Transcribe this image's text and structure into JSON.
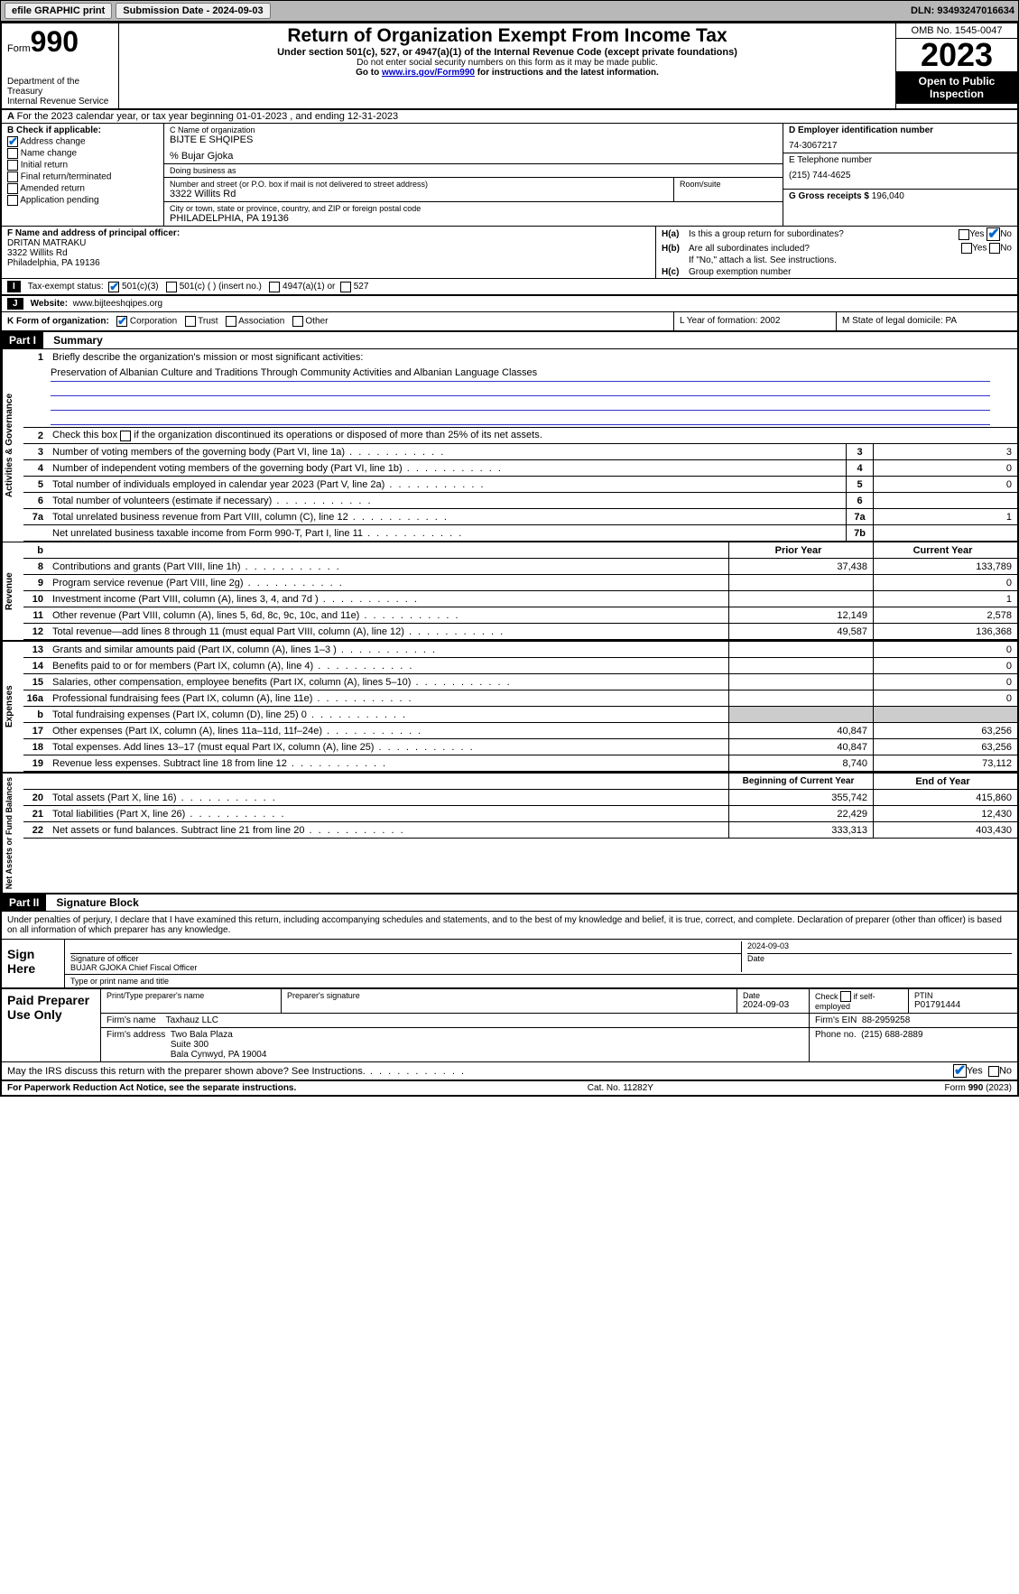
{
  "topbar": {
    "efile_btn": "efile GRAPHIC print",
    "sub_date_label": "Submission Date - 2024-09-03",
    "dln": "DLN: 93493247016634"
  },
  "header": {
    "form_label": "Form",
    "form_num": "990",
    "dept": "Department of the Treasury\nInternal Revenue Service",
    "title": "Return of Organization Exempt From Income Tax",
    "sub1": "Under section 501(c), 527, or 4947(a)(1) of the Internal Revenue Code (except private foundations)",
    "sub2": "Do not enter social security numbers on this form as it may be made public.",
    "sub3_pre": "Go to ",
    "sub3_link": "www.irs.gov/Form990",
    "sub3_post": " for instructions and the latest information.",
    "omb": "OMB No. 1545-0047",
    "year": "2023",
    "open": "Open to Public Inspection"
  },
  "rowA": {
    "text": "For the 2023 calendar year, or tax year beginning 01-01-2023   , and ending 12-31-2023"
  },
  "B": {
    "label": "B Check if applicable:",
    "addr_change": "Address change",
    "name_change": "Name change",
    "initial": "Initial return",
    "final": "Final return/terminated",
    "amended": "Amended return",
    "app_pending": "Application pending"
  },
  "C": {
    "name_lbl": "C Name of organization",
    "name": "BIJTE E SHQIPES",
    "care_of": "% Bujar Gjoka",
    "dba_lbl": "Doing business as",
    "addr_lbl": "Number and street (or P.O. box if mail is not delivered to street address)",
    "addr": "3322 Willits Rd",
    "room_lbl": "Room/suite",
    "city_lbl": "City or town, state or province, country, and ZIP or foreign postal code",
    "city": "PHILADELPHIA, PA  19136"
  },
  "D": {
    "ein_lbl": "D Employer identification number",
    "ein": "74-3067217",
    "phone_lbl": "E Telephone number",
    "phone": "(215) 744-4625",
    "gross_lbl": "G Gross receipts $",
    "gross": "196,040"
  },
  "F": {
    "lbl": "F  Name and address of principal officer:",
    "name": "DRITAN MATRAKU",
    "addr1": "3322 Willits Rd",
    "addr2": "Philadelphia, PA  19136"
  },
  "H": {
    "a_lbl": "H(a)",
    "a_txt": "Is this a group return for subordinates?",
    "b_lbl": "H(b)",
    "b_txt": "Are all subordinates included?",
    "b_note": "If \"No,\" attach a list. See instructions.",
    "c_lbl": "H(c)",
    "c_txt": "Group exemption number",
    "yes": "Yes",
    "no": "No"
  },
  "I": {
    "lbl": "I",
    "txt": "Tax-exempt status:",
    "opt1": "501(c)(3)",
    "opt2": "501(c) (  ) (insert no.)",
    "opt3": "4947(a)(1) or",
    "opt4": "527"
  },
  "J": {
    "lbl": "J",
    "txt": "Website:",
    "val": "www.bijteeshqipes.org"
  },
  "K": {
    "lbl": "K Form of organization:",
    "corp": "Corporation",
    "trust": "Trust",
    "assoc": "Association",
    "other": "Other"
  },
  "L": {
    "txt": "L Year of formation: 2002"
  },
  "M": {
    "txt": "M State of legal domicile: PA"
  },
  "partI": {
    "hdr": "Part I",
    "title": "Summary",
    "line1_lbl": "Briefly describe the organization's mission or most significant activities:",
    "mission": "Preservation of Albanian Culture and Traditions Through Community Activities and Albanian Language Classes",
    "line2": "Check this box      if the organization discontinued its operations or disposed of more than 25% of its net assets.",
    "side_gov": "Activities & Governance",
    "side_rev": "Revenue",
    "side_exp": "Expenses",
    "side_net": "Net Assets or Fund Balances",
    "rows_gov": [
      {
        "n": "3",
        "d": "Number of voting members of the governing body (Part VI, line 1a)",
        "box": "3",
        "v": "3"
      },
      {
        "n": "4",
        "d": "Number of independent voting members of the governing body (Part VI, line 1b)",
        "box": "4",
        "v": "0"
      },
      {
        "n": "5",
        "d": "Total number of individuals employed in calendar year 2023 (Part V, line 2a)",
        "box": "5",
        "v": "0"
      },
      {
        "n": "6",
        "d": "Total number of volunteers (estimate if necessary)",
        "box": "6",
        "v": ""
      },
      {
        "n": "7a",
        "d": "Total unrelated business revenue from Part VIII, column (C), line 12",
        "box": "7a",
        "v": "1"
      },
      {
        "n": "",
        "d": "Net unrelated business taxable income from Form 990-T, Part I, line 11",
        "box": "7b",
        "v": ""
      }
    ],
    "hdr_prior": "Prior Year",
    "hdr_curr": "Current Year",
    "rows_rev": [
      {
        "n": "8",
        "d": "Contributions and grants (Part VIII, line 1h)",
        "p": "37,438",
        "c": "133,789"
      },
      {
        "n": "9",
        "d": "Program service revenue (Part VIII, line 2g)",
        "p": "",
        "c": "0"
      },
      {
        "n": "10",
        "d": "Investment income (Part VIII, column (A), lines 3, 4, and 7d )",
        "p": "",
        "c": "1"
      },
      {
        "n": "11",
        "d": "Other revenue (Part VIII, column (A), lines 5, 6d, 8c, 9c, 10c, and 11e)",
        "p": "12,149",
        "c": "2,578"
      },
      {
        "n": "12",
        "d": "Total revenue—add lines 8 through 11 (must equal Part VIII, column (A), line 12)",
        "p": "49,587",
        "c": "136,368"
      }
    ],
    "rows_exp": [
      {
        "n": "13",
        "d": "Grants and similar amounts paid (Part IX, column (A), lines 1–3 )",
        "p": "",
        "c": "0"
      },
      {
        "n": "14",
        "d": "Benefits paid to or for members (Part IX, column (A), line 4)",
        "p": "",
        "c": "0"
      },
      {
        "n": "15",
        "d": "Salaries, other compensation, employee benefits (Part IX, column (A), lines 5–10)",
        "p": "",
        "c": "0"
      },
      {
        "n": "16a",
        "d": "Professional fundraising fees (Part IX, column (A), line 11e)",
        "p": "",
        "c": "0"
      },
      {
        "n": "b",
        "d": "Total fundraising expenses (Part IX, column (D), line 25) 0",
        "p": "shaded",
        "c": "shaded"
      },
      {
        "n": "17",
        "d": "Other expenses (Part IX, column (A), lines 11a–11d, 11f–24e)",
        "p": "40,847",
        "c": "63,256"
      },
      {
        "n": "18",
        "d": "Total expenses. Add lines 13–17 (must equal Part IX, column (A), line 25)",
        "p": "40,847",
        "c": "63,256"
      },
      {
        "n": "19",
        "d": "Revenue less expenses. Subtract line 18 from line 12",
        "p": "8,740",
        "c": "73,112"
      }
    ],
    "hdr_beg": "Beginning of Current Year",
    "hdr_end": "End of Year",
    "rows_net": [
      {
        "n": "20",
        "d": "Total assets (Part X, line 16)",
        "p": "355,742",
        "c": "415,860"
      },
      {
        "n": "21",
        "d": "Total liabilities (Part X, line 26)",
        "p": "22,429",
        "c": "12,430"
      },
      {
        "n": "22",
        "d": "Net assets or fund balances. Subtract line 21 from line 20",
        "p": "333,313",
        "c": "403,430"
      }
    ]
  },
  "partII": {
    "hdr": "Part II",
    "title": "Signature Block",
    "decl": "Under penalties of perjury, I declare that I have examined this return, including accompanying schedules and statements, and to the best of my knowledge and belief, it is true, correct, and complete. Declaration of preparer (other than officer) is based on all information of which preparer has any knowledge."
  },
  "sign": {
    "lbl": "Sign Here",
    "sig_lbl": "Signature of officer",
    "officer": "BUJAR GJOKA  Chief Fiscal Officer",
    "type_lbl": "Type or print name and title",
    "date_lbl": "Date",
    "date": "2024-09-03"
  },
  "paid": {
    "lbl": "Paid Preparer Use Only",
    "print_lbl": "Print/Type preparer's name",
    "sig_lbl": "Preparer's signature",
    "date_lbl": "Date",
    "date": "2024-09-03",
    "check_lbl": "Check        if self-employed",
    "ptin_lbl": "PTIN",
    "ptin": "P01791444",
    "firm_name_lbl": "Firm's name",
    "firm_name": "Taxhauz LLC",
    "firm_ein_lbl": "Firm's EIN",
    "firm_ein": "88-2959258",
    "firm_addr_lbl": "Firm's address",
    "firm_addr": "Two Bala Plaza\nSuite 300\nBala Cynwyd, PA  19004",
    "phone_lbl": "Phone no.",
    "phone": "(215) 688-2889",
    "discuss": "May the IRS discuss this return with the preparer shown above? See Instructions.",
    "yes": "Yes",
    "no": "No"
  },
  "footer": {
    "left": "For Paperwork Reduction Act Notice, see the separate instructions.",
    "mid": "Cat. No. 11282Y",
    "right": "Form 990 (2023)"
  }
}
